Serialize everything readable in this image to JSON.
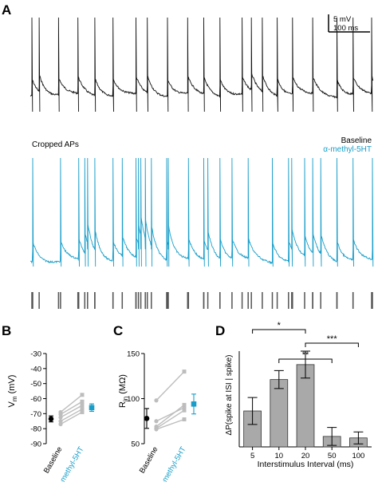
{
  "panels": {
    "a": {
      "letter": "A",
      "scalebar_v": "5 mV",
      "scalebar_h": "100 ms",
      "cropped_label": "Cropped APs",
      "legend": [
        {
          "label": "Baseline",
          "color": "#000000"
        },
        {
          "label": "α-methyl-5HT",
          "color": "#1a9ec9"
        }
      ],
      "baseline_spike_times_ms": [
        4,
        22,
        70,
        118,
        160,
        205,
        262,
        290,
        340,
        390,
        430,
        470,
        525,
        548,
        575,
        612,
        650,
        700,
        760,
        800,
        846
      ],
      "treated_spike_times_ms": [
        6,
        75,
        120,
        135,
        142,
        160,
        205,
        228,
        262,
        268,
        274,
        285,
        300,
        338,
        342,
        392,
        430,
        440,
        470,
        500,
        540,
        600,
        640,
        648,
        680,
        700,
        720,
        760,
        800,
        848
      ]
    },
    "b": {
      "letter": "B"
    },
    "c": {
      "letter": "C"
    },
    "d": {
      "letter": "D",
      "significance": [
        {
          "label": "*",
          "from": "5",
          "to": "20"
        },
        {
          "label": "***",
          "from": "20",
          "to": "100"
        },
        {
          "label": "**",
          "from": "10",
          "to": "50"
        }
      ]
    }
  },
  "chart_data": [
    {
      "panel": "B",
      "type": "scatter",
      "ylabel": "V_m (mV)",
      "ylabel_main": "V",
      "ylabel_sub": "m",
      "ylabel_unit": " (mV)",
      "ylim": [
        -90,
        -30
      ],
      "yticks": [
        "-30",
        "-40",
        "-50",
        "-60",
        "-70",
        "-80",
        "-90"
      ],
      "categories": [
        "Baseline",
        "α-methyl-5HT"
      ],
      "category_colors": [
        "#000000",
        "#1a9ec9"
      ],
      "paired": [
        [
          -69,
          -57.5
        ],
        [
          -70.5,
          -62
        ],
        [
          -72.5,
          -64.5
        ],
        [
          -75,
          -67
        ],
        [
          -77,
          -69
        ]
      ],
      "means": [
        -73.5,
        -66
      ],
      "errors": [
        2,
        2.5
      ]
    },
    {
      "panel": "C",
      "type": "scatter",
      "ylabel": "R_in (MΩ)",
      "ylabel_main": "R",
      "ylabel_sub": "in",
      "ylabel_unit": " (MΩ)",
      "ylim": [
        50,
        150
      ],
      "yticks": [
        "150",
        "100",
        "50"
      ],
      "categories": [
        "Baseline",
        "α-methyl-5HT"
      ],
      "category_colors": [
        "#000000",
        "#1a9ec9"
      ],
      "paired": [
        [
          98,
          130
        ],
        [
          75,
          90
        ],
        [
          69,
          93
        ],
        [
          67,
          87
        ],
        [
          66,
          77
        ]
      ],
      "means": [
        78,
        94
      ],
      "errors": [
        11,
        11
      ]
    },
    {
      "panel": "D",
      "type": "bar",
      "xlabel": "Interstimulus Interval (ms)",
      "ylabel": "ΔP(spike at ISI | spike)",
      "categories": [
        "5",
        "10",
        "20",
        "50",
        "100"
      ],
      "values": [
        0.12,
        0.225,
        0.275,
        0.035,
        0.03
      ],
      "errors": [
        0.045,
        0.03,
        0.045,
        0.03,
        0.02
      ],
      "ylim": [
        0,
        0.4
      ]
    }
  ]
}
